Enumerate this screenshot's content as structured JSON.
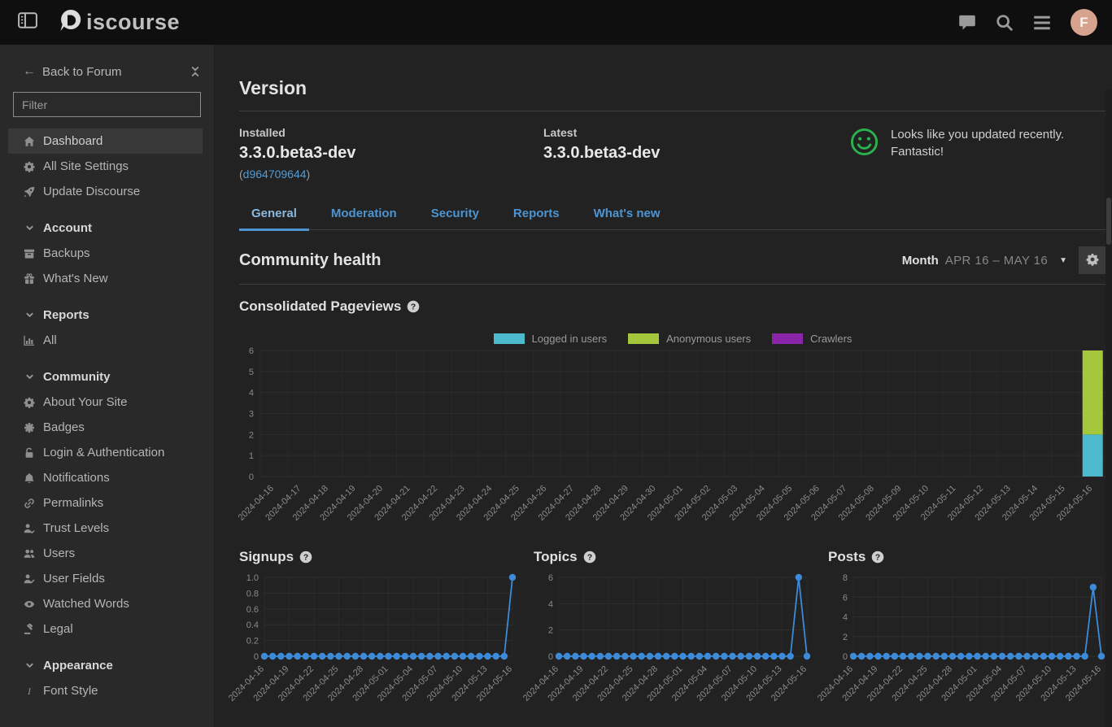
{
  "header": {
    "logo_text": "iscourse",
    "avatar_initial": "F"
  },
  "sidebar": {
    "back_label": "Back to Forum",
    "filter_placeholder": "Filter",
    "sections": [
      {
        "heading": "",
        "items": [
          {
            "icon": "home",
            "label": "Dashboard",
            "active": true
          },
          {
            "icon": "gear",
            "label": "All Site Settings"
          },
          {
            "icon": "rocket",
            "label": "Update Discourse"
          }
        ]
      },
      {
        "heading": "Account",
        "items": [
          {
            "icon": "box",
            "label": "Backups"
          },
          {
            "icon": "gift",
            "label": "What's New"
          }
        ]
      },
      {
        "heading": "Reports",
        "items": [
          {
            "icon": "chart",
            "label": "All"
          }
        ]
      },
      {
        "heading": "Community",
        "items": [
          {
            "icon": "gear",
            "label": "About Your Site"
          },
          {
            "icon": "badge",
            "label": "Badges"
          },
          {
            "icon": "unlock",
            "label": "Login & Authentication"
          },
          {
            "icon": "bell",
            "label": "Notifications"
          },
          {
            "icon": "link",
            "label": "Permalinks"
          },
          {
            "icon": "user-check",
            "label": "Trust Levels"
          },
          {
            "icon": "users",
            "label": "Users"
          },
          {
            "icon": "user-pen",
            "label": "User Fields"
          },
          {
            "icon": "eye",
            "label": "Watched Words"
          },
          {
            "icon": "gavel",
            "label": "Legal"
          }
        ]
      },
      {
        "heading": "Appearance",
        "items": [
          {
            "icon": "italic",
            "label": "Font Style"
          }
        ]
      }
    ]
  },
  "version": {
    "title": "Version",
    "installed_label": "Installed",
    "installed_value": "3.3.0.beta3-dev",
    "paren_open": "(",
    "installed_commit": "d964709644",
    "paren_close": ")",
    "latest_label": "Latest",
    "latest_value": "3.3.0.beta3-dev",
    "status_line1": "Looks like you updated recently.",
    "status_line2": "Fantastic!",
    "smiley_color": "#2bb14e"
  },
  "tabs": [
    {
      "label": "General",
      "active": true
    },
    {
      "label": "Moderation",
      "active": false
    },
    {
      "label": "Security",
      "active": false
    },
    {
      "label": "Reports",
      "active": false
    },
    {
      "label": "What's new",
      "active": false
    }
  ],
  "community_health": {
    "title": "Community health",
    "period_label": "Month",
    "period_range": "APR 16 – MAY 16"
  },
  "chart_data": [
    {
      "type": "bar",
      "stacked": true,
      "title": "Consolidated Pageviews",
      "legend_position": "top",
      "ylim": [
        0,
        6
      ],
      "yticks": [
        0,
        1,
        2,
        3,
        4,
        5,
        6
      ],
      "ytick_labels": [
        "0",
        "1",
        "2",
        "3",
        "4",
        "5",
        "6"
      ],
      "categories": [
        "2024-04-16",
        "2024-04-17",
        "2024-04-18",
        "2024-04-19",
        "2024-04-20",
        "2024-04-21",
        "2024-04-22",
        "2024-04-23",
        "2024-04-24",
        "2024-04-25",
        "2024-04-26",
        "2024-04-27",
        "2024-04-28",
        "2024-04-29",
        "2024-04-30",
        "2024-05-01",
        "2024-05-02",
        "2024-05-03",
        "2024-05-04",
        "2024-05-05",
        "2024-05-06",
        "2024-05-07",
        "2024-05-08",
        "2024-05-09",
        "2024-05-10",
        "2024-05-11",
        "2024-05-12",
        "2024-05-13",
        "2024-05-14",
        "2024-05-15",
        "2024-05-16"
      ],
      "series": [
        {
          "name": "Logged in users",
          "color": "#4cb9cc",
          "values": [
            0,
            0,
            0,
            0,
            0,
            0,
            0,
            0,
            0,
            0,
            0,
            0,
            0,
            0,
            0,
            0,
            0,
            0,
            0,
            0,
            0,
            0,
            0,
            0,
            0,
            0,
            0,
            0,
            0,
            0,
            2
          ]
        },
        {
          "name": "Anonymous users",
          "color": "#a5c73c",
          "values": [
            0,
            0,
            0,
            0,
            0,
            0,
            0,
            0,
            0,
            0,
            0,
            0,
            0,
            0,
            0,
            0,
            0,
            0,
            0,
            0,
            0,
            0,
            0,
            0,
            0,
            0,
            0,
            0,
            0,
            0,
            4
          ]
        },
        {
          "name": "Crawlers",
          "color": "#8a24a8",
          "values": [
            0,
            0,
            0,
            0,
            0,
            0,
            0,
            0,
            0,
            0,
            0,
            0,
            0,
            0,
            0,
            0,
            0,
            0,
            0,
            0,
            0,
            0,
            0,
            0,
            0,
            0,
            0,
            0,
            0,
            0,
            0
          ]
        }
      ]
    },
    {
      "type": "line",
      "title": "Signups",
      "color": "#3d8bd8",
      "ylim": [
        0,
        1
      ],
      "yticks": [
        0,
        0.2,
        0.4,
        0.6,
        0.8,
        1.0
      ],
      "ytick_labels": [
        "0",
        "0.2",
        "0.4",
        "0.6",
        "0.8",
        "1.0"
      ],
      "xtick_every": 3,
      "x": [
        "2024-04-16",
        "2024-04-17",
        "2024-04-18",
        "2024-04-19",
        "2024-04-20",
        "2024-04-21",
        "2024-04-22",
        "2024-04-23",
        "2024-04-24",
        "2024-04-25",
        "2024-04-26",
        "2024-04-27",
        "2024-04-28",
        "2024-04-29",
        "2024-04-30",
        "2024-05-01",
        "2024-05-02",
        "2024-05-03",
        "2024-05-04",
        "2024-05-05",
        "2024-05-06",
        "2024-05-07",
        "2024-05-08",
        "2024-05-09",
        "2024-05-10",
        "2024-05-11",
        "2024-05-12",
        "2024-05-13",
        "2024-05-14",
        "2024-05-15",
        "2024-05-16"
      ],
      "values": [
        0,
        0,
        0,
        0,
        0,
        0,
        0,
        0,
        0,
        0,
        0,
        0,
        0,
        0,
        0,
        0,
        0,
        0,
        0,
        0,
        0,
        0,
        0,
        0,
        0,
        0,
        0,
        0,
        0,
        0,
        1
      ]
    },
    {
      "type": "line",
      "title": "Topics",
      "color": "#3d8bd8",
      "ylim": [
        0,
        6
      ],
      "yticks": [
        0,
        2,
        4,
        6
      ],
      "ytick_labels": [
        "0",
        "2",
        "4",
        "6"
      ],
      "xtick_every": 3,
      "x": [
        "2024-04-16",
        "2024-04-17",
        "2024-04-18",
        "2024-04-19",
        "2024-04-20",
        "2024-04-21",
        "2024-04-22",
        "2024-04-23",
        "2024-04-24",
        "2024-04-25",
        "2024-04-26",
        "2024-04-27",
        "2024-04-28",
        "2024-04-29",
        "2024-04-30",
        "2024-05-01",
        "2024-05-02",
        "2024-05-03",
        "2024-05-04",
        "2024-05-05",
        "2024-05-06",
        "2024-05-07",
        "2024-05-08",
        "2024-05-09",
        "2024-05-10",
        "2024-05-11",
        "2024-05-12",
        "2024-05-13",
        "2024-05-14",
        "2024-05-15",
        "2024-05-16"
      ],
      "values": [
        0,
        0,
        0,
        0,
        0,
        0,
        0,
        0,
        0,
        0,
        0,
        0,
        0,
        0,
        0,
        0,
        0,
        0,
        0,
        0,
        0,
        0,
        0,
        0,
        0,
        0,
        0,
        0,
        0,
        6,
        0
      ]
    },
    {
      "type": "line",
      "title": "Posts",
      "color": "#3d8bd8",
      "ylim": [
        0,
        8
      ],
      "yticks": [
        0,
        2,
        4,
        6,
        8
      ],
      "ytick_labels": [
        "0",
        "2",
        "4",
        "6",
        "8"
      ],
      "xtick_every": 3,
      "x": [
        "2024-04-16",
        "2024-04-17",
        "2024-04-18",
        "2024-04-19",
        "2024-04-20",
        "2024-04-21",
        "2024-04-22",
        "2024-04-23",
        "2024-04-24",
        "2024-04-25",
        "2024-04-26",
        "2024-04-27",
        "2024-04-28",
        "2024-04-29",
        "2024-04-30",
        "2024-05-01",
        "2024-05-02",
        "2024-05-03",
        "2024-05-04",
        "2024-05-05",
        "2024-05-06",
        "2024-05-07",
        "2024-05-08",
        "2024-05-09",
        "2024-05-10",
        "2024-05-11",
        "2024-05-12",
        "2024-05-13",
        "2024-05-14",
        "2024-05-15",
        "2024-05-16"
      ],
      "values": [
        0,
        0,
        0,
        0,
        0,
        0,
        0,
        0,
        0,
        0,
        0,
        0,
        0,
        0,
        0,
        0,
        0,
        0,
        0,
        0,
        0,
        0,
        0,
        0,
        0,
        0,
        0,
        0,
        0,
        7,
        0
      ]
    }
  ]
}
